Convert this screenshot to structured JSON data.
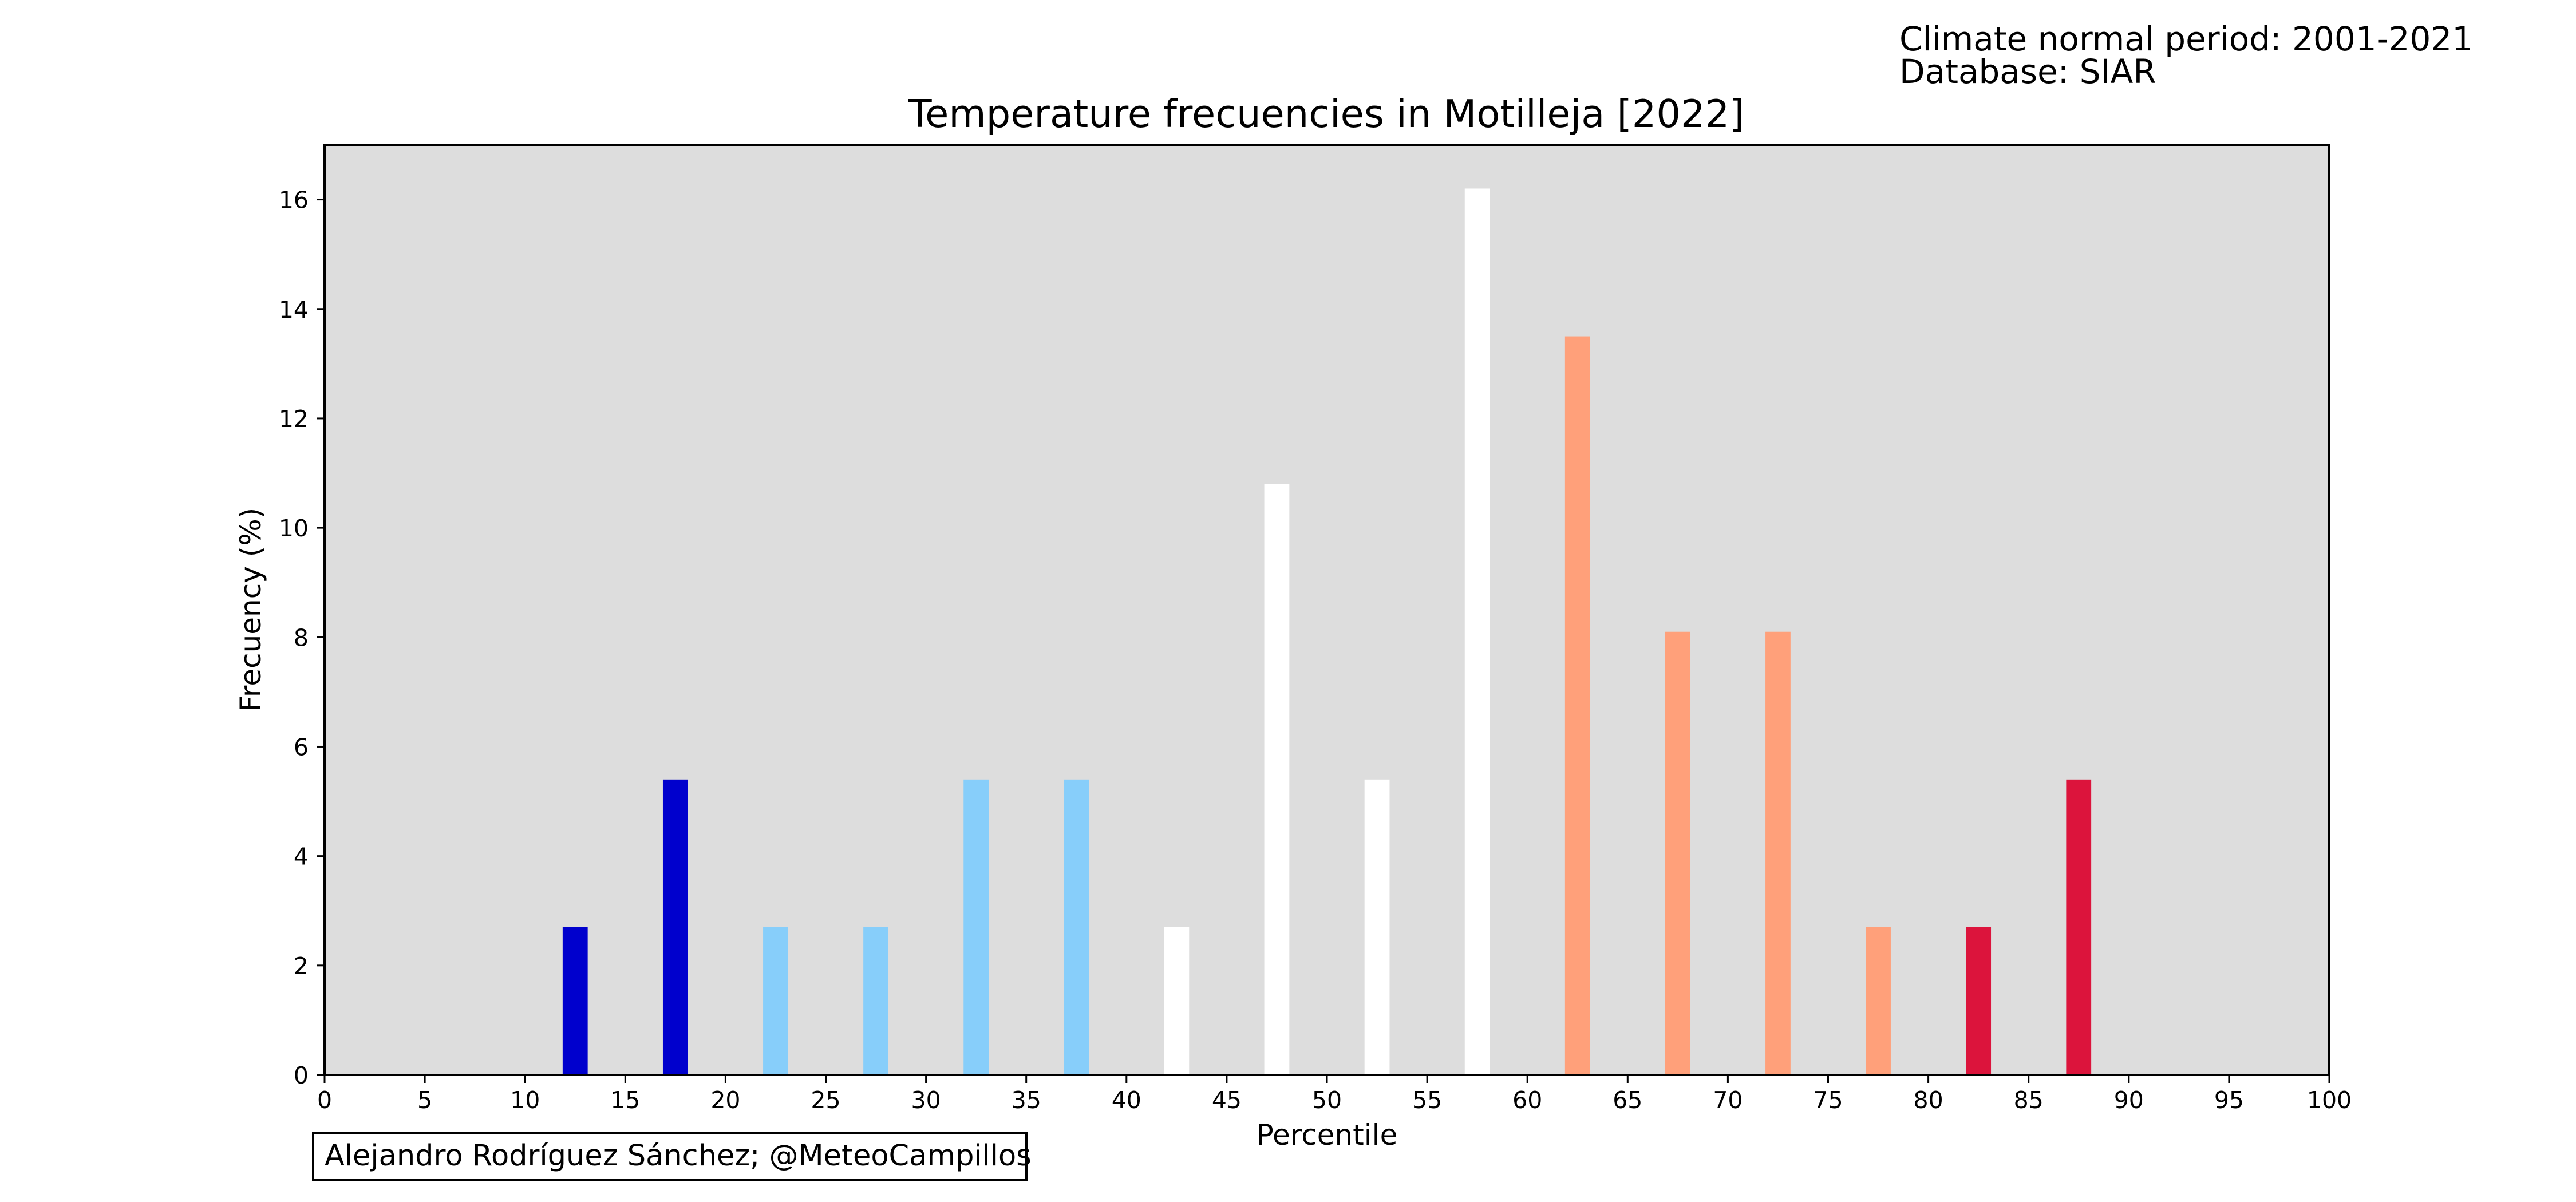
{
  "header_notes": {
    "line1": "Climate normal period: 2001-2021",
    "line2": "Database: SIAR"
  },
  "credit": "Alejandro Rodríguez Sánchez; @MeteoCampillos",
  "chart_data": {
    "type": "bar",
    "title": "Temperature frecuencies in Motilleja [2022]",
    "xlabel": "Percentile",
    "ylabel": "Frecuency (%)",
    "xlim": [
      0,
      100
    ],
    "ylim": [
      0,
      17
    ],
    "xticks": [
      "0",
      "5",
      "10",
      "15",
      "20",
      "25",
      "30",
      "35",
      "40",
      "45",
      "50",
      "55",
      "60",
      "65",
      "70",
      "75",
      "80",
      "85",
      "90",
      "95",
      "100"
    ],
    "yticks": [
      "0",
      "2",
      "4",
      "6",
      "8",
      "10",
      "12",
      "14",
      "16"
    ],
    "grid": false,
    "plot_background": "#dddddd",
    "bar_width": 1.25,
    "bars": [
      {
        "x": 12.5,
        "value": 2.7,
        "color": "#0000cd"
      },
      {
        "x": 17.5,
        "value": 5.4,
        "color": "#0000cd"
      },
      {
        "x": 22.5,
        "value": 2.7,
        "color": "#87cefa"
      },
      {
        "x": 27.5,
        "value": 2.7,
        "color": "#87cefa"
      },
      {
        "x": 32.5,
        "value": 5.4,
        "color": "#87cefa"
      },
      {
        "x": 37.5,
        "value": 5.4,
        "color": "#87cefa"
      },
      {
        "x": 42.5,
        "value": 2.7,
        "color": "#ffffff"
      },
      {
        "x": 47.5,
        "value": 10.8,
        "color": "#ffffff"
      },
      {
        "x": 52.5,
        "value": 5.4,
        "color": "#ffffff"
      },
      {
        "x": 57.5,
        "value": 16.2,
        "color": "#ffffff"
      },
      {
        "x": 62.5,
        "value": 13.5,
        "color": "#ffa07a"
      },
      {
        "x": 67.5,
        "value": 8.1,
        "color": "#ffa07a"
      },
      {
        "x": 72.5,
        "value": 8.1,
        "color": "#ffa07a"
      },
      {
        "x": 77.5,
        "value": 2.7,
        "color": "#ffa07a"
      },
      {
        "x": 82.5,
        "value": 2.7,
        "color": "#dc143c"
      },
      {
        "x": 87.5,
        "value": 5.4,
        "color": "#dc143c"
      }
    ]
  }
}
